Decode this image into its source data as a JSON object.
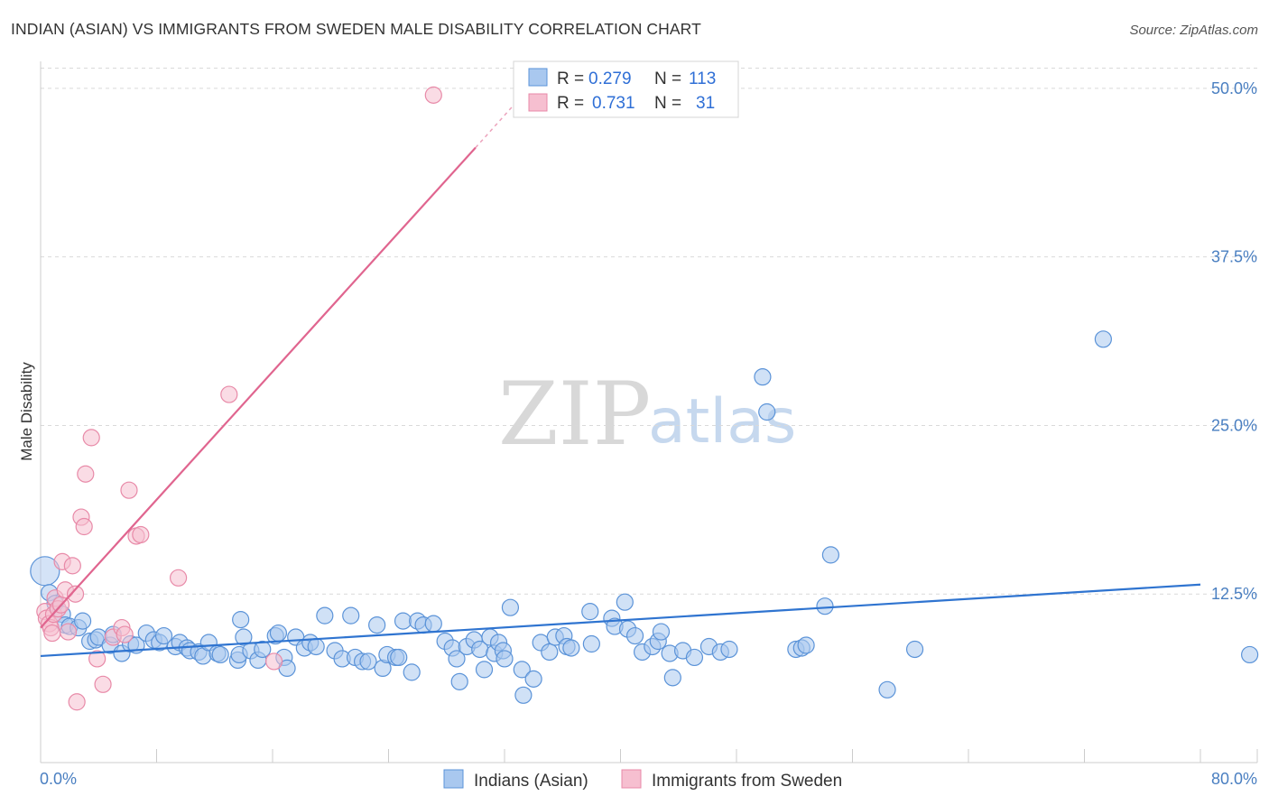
{
  "title": "INDIAN (ASIAN) VS IMMIGRANTS FROM SWEDEN MALE DISABILITY CORRELATION CHART",
  "source": "Source: ZipAtlas.com",
  "watermark": {
    "zip": "ZIP",
    "atlas": "atlas"
  },
  "colors": {
    "blue_fill": "#a9c8ef",
    "blue_stroke": "#5b93d8",
    "blue_line": "#2f74d0",
    "pink_fill": "#f6bfd0",
    "pink_stroke": "#e88aa8",
    "pink_line": "#e0658f",
    "grid": "#d9d9d9",
    "tick_text": "#4a7fc1"
  },
  "legend": {
    "rows": [
      {
        "r_label": "R = ",
        "r_value": "0.279",
        "n_label": "N = ",
        "n_value": "113"
      },
      {
        "r_label": "R = ",
        "r_value": "0.731",
        "n_label": "N = ",
        "n_value": "31"
      }
    ]
  },
  "bottom_legend": [
    "Indians (Asian)",
    "Immigrants from Sweden"
  ],
  "chart_data": {
    "type": "scatter",
    "title": "INDIAN (ASIAN) VS IMMIGRANTS FROM SWEDEN MALE DISABILITY CORRELATION CHART",
    "xlabel": "",
    "ylabel": "Male Disability",
    "xlim": [
      0,
      80
    ],
    "ylim": [
      0,
      52
    ],
    "x_tick_labels": [
      "0.0%",
      "80.0%"
    ],
    "y_ticks": [
      12.5,
      25.0,
      37.5,
      50.0
    ],
    "y_tick_labels": [
      "12.5%",
      "25.0%",
      "37.5%",
      "50.0%"
    ],
    "series": [
      {
        "name": "Indians (Asian)",
        "r": 0.279,
        "n": 113,
        "trend": {
          "x0": 0,
          "y0": 7.9,
          "x1": 80,
          "y1": 13.2
        },
        "points": [
          [
            0.3,
            14.2
          ],
          [
            0.6,
            12.6
          ],
          [
            1.0,
            11.8
          ],
          [
            1.5,
            11.0
          ],
          [
            1.7,
            10.2
          ],
          [
            2.0,
            10.1
          ],
          [
            2.6,
            10.0
          ],
          [
            2.9,
            10.5
          ],
          [
            3.4,
            9.0
          ],
          [
            3.8,
            9.1
          ],
          [
            4.0,
            9.3
          ],
          [
            4.8,
            8.7
          ],
          [
            5.0,
            9.5
          ],
          [
            5.6,
            8.1
          ],
          [
            6.2,
            8.8
          ],
          [
            6.6,
            8.7
          ],
          [
            7.3,
            9.6
          ],
          [
            7.8,
            9.1
          ],
          [
            8.2,
            8.9
          ],
          [
            8.5,
            9.4
          ],
          [
            9.3,
            8.6
          ],
          [
            9.6,
            8.9
          ],
          [
            10.1,
            8.5
          ],
          [
            10.3,
            8.3
          ],
          [
            10.9,
            8.2
          ],
          [
            11.2,
            7.9
          ],
          [
            11.6,
            8.9
          ],
          [
            12.2,
            8.1
          ],
          [
            12.4,
            8.0
          ],
          [
            13.6,
            7.6
          ],
          [
            13.7,
            8.0
          ],
          [
            13.8,
            10.6
          ],
          [
            14.0,
            9.3
          ],
          [
            14.5,
            8.3
          ],
          [
            15.0,
            7.6
          ],
          [
            15.3,
            8.4
          ],
          [
            16.2,
            9.4
          ],
          [
            16.4,
            9.6
          ],
          [
            16.8,
            7.8
          ],
          [
            17.0,
            7.0
          ],
          [
            17.6,
            9.3
          ],
          [
            18.2,
            8.5
          ],
          [
            18.6,
            8.9
          ],
          [
            19.0,
            8.6
          ],
          [
            19.6,
            10.9
          ],
          [
            20.3,
            8.3
          ],
          [
            20.8,
            7.7
          ],
          [
            21.4,
            10.9
          ],
          [
            21.7,
            7.8
          ],
          [
            22.2,
            7.5
          ],
          [
            22.6,
            7.5
          ],
          [
            23.2,
            10.2
          ],
          [
            23.6,
            7.0
          ],
          [
            23.9,
            8.0
          ],
          [
            24.5,
            7.8
          ],
          [
            24.7,
            7.8
          ],
          [
            25.0,
            10.5
          ],
          [
            25.6,
            6.7
          ],
          [
            26.0,
            10.5
          ],
          [
            26.4,
            10.2
          ],
          [
            27.1,
            10.3
          ],
          [
            27.9,
            9.0
          ],
          [
            28.4,
            8.5
          ],
          [
            28.7,
            7.7
          ],
          [
            28.9,
            6.0
          ],
          [
            29.4,
            8.6
          ],
          [
            29.9,
            9.1
          ],
          [
            30.3,
            8.4
          ],
          [
            30.6,
            6.9
          ],
          [
            31.0,
            9.3
          ],
          [
            31.3,
            8.1
          ],
          [
            31.6,
            8.9
          ],
          [
            31.9,
            8.3
          ],
          [
            32.0,
            7.7
          ],
          [
            32.4,
            11.5
          ],
          [
            33.2,
            6.9
          ],
          [
            33.3,
            5.0
          ],
          [
            34.0,
            6.2
          ],
          [
            34.5,
            8.9
          ],
          [
            35.1,
            8.2
          ],
          [
            35.5,
            9.3
          ],
          [
            36.1,
            9.4
          ],
          [
            36.3,
            8.6
          ],
          [
            36.6,
            8.5
          ],
          [
            37.9,
            11.2
          ],
          [
            38.0,
            8.8
          ],
          [
            39.4,
            10.7
          ],
          [
            39.6,
            10.1
          ],
          [
            40.3,
            11.9
          ],
          [
            40.5,
            9.9
          ],
          [
            41.0,
            9.4
          ],
          [
            41.5,
            8.2
          ],
          [
            42.2,
            8.6
          ],
          [
            42.6,
            9.0
          ],
          [
            42.8,
            9.7
          ],
          [
            43.4,
            8.1
          ],
          [
            43.6,
            6.3
          ],
          [
            44.3,
            8.3
          ],
          [
            45.1,
            7.8
          ],
          [
            46.1,
            8.6
          ],
          [
            46.9,
            8.2
          ],
          [
            47.5,
            8.4
          ],
          [
            49.8,
            28.6
          ],
          [
            50.1,
            26.0
          ],
          [
            52.1,
            8.4
          ],
          [
            52.5,
            8.5
          ],
          [
            52.8,
            8.7
          ],
          [
            54.1,
            11.6
          ],
          [
            54.5,
            15.4
          ],
          [
            58.4,
            5.4
          ],
          [
            60.3,
            8.4
          ],
          [
            73.3,
            31.4
          ],
          [
            83.4,
            8.0
          ]
        ]
      },
      {
        "name": "Immigrants from Sweden",
        "r": 0.731,
        "n": 31,
        "trend": {
          "x0": 0,
          "y0": 10.0,
          "x1": 30.0,
          "y1": 45.6,
          "dash_to_x": 33.5,
          "dash_to_y": 49.8
        },
        "points": [
          [
            0.3,
            11.2
          ],
          [
            0.4,
            10.7
          ],
          [
            0.6,
            10.3
          ],
          [
            0.7,
            10.0
          ],
          [
            0.8,
            9.6
          ],
          [
            0.9,
            11.0
          ],
          [
            1.0,
            12.2
          ],
          [
            1.2,
            11.4
          ],
          [
            1.4,
            11.7
          ],
          [
            1.5,
            14.9
          ],
          [
            1.7,
            12.8
          ],
          [
            1.9,
            9.7
          ],
          [
            2.2,
            14.6
          ],
          [
            2.4,
            12.5
          ],
          [
            2.5,
            4.5
          ],
          [
            2.8,
            18.2
          ],
          [
            3.0,
            17.5
          ],
          [
            3.1,
            21.4
          ],
          [
            3.5,
            24.1
          ],
          [
            3.9,
            7.7
          ],
          [
            4.3,
            5.8
          ],
          [
            5.0,
            9.3
          ],
          [
            5.6,
            10.0
          ],
          [
            5.8,
            9.5
          ],
          [
            6.1,
            20.2
          ],
          [
            6.6,
            16.8
          ],
          [
            6.9,
            16.9
          ],
          [
            9.5,
            13.7
          ],
          [
            13.0,
            27.3
          ],
          [
            16.1,
            7.5
          ],
          [
            27.1,
            49.5
          ]
        ]
      }
    ]
  }
}
